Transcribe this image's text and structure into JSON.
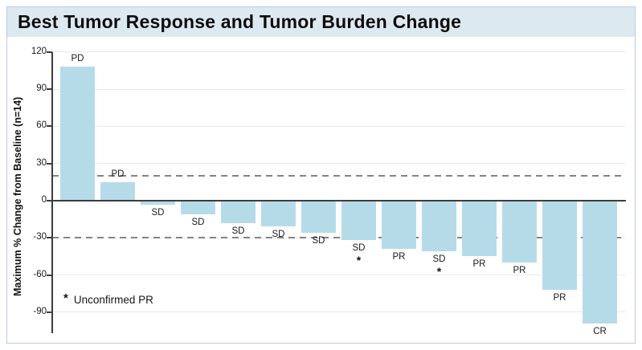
{
  "chart_data": {
    "type": "bar",
    "title": "Best Tumor Response and Tumor Burden Change",
    "ylabel": "Maximum % Change from Baseline (n=14)",
    "xlabel": "",
    "ylim": [
      -105,
      125
    ],
    "yticks": [
      120,
      90,
      60,
      30,
      0,
      -30,
      -60,
      -90
    ],
    "reference_lines": [
      20,
      -30
    ],
    "grid": true,
    "legend": false,
    "annotation_star": "*",
    "annotation_text": "Unconfirmed PR",
    "bar_color": "#b6dbe8",
    "axis_color": "#3d3d3d",
    "reference_line_color": "#838383",
    "header_background": "#dde9f1",
    "bars": [
      {
        "label": "PD",
        "value": 108,
        "asterisk": false
      },
      {
        "label": "PD",
        "value": 15,
        "asterisk": false
      },
      {
        "label": "SD",
        "value": -3,
        "asterisk": false
      },
      {
        "label": "SD",
        "value": -11,
        "asterisk": false
      },
      {
        "label": "SD",
        "value": -18,
        "asterisk": false
      },
      {
        "label": "SD",
        "value": -21,
        "asterisk": false
      },
      {
        "label": "SD",
        "value": -26,
        "asterisk": false
      },
      {
        "label": "SD",
        "value": -32,
        "asterisk": true
      },
      {
        "label": "PR",
        "value": -39,
        "asterisk": false
      },
      {
        "label": "SD",
        "value": -41,
        "asterisk": true
      },
      {
        "label": "PR",
        "value": -45,
        "asterisk": false
      },
      {
        "label": "PR",
        "value": -50,
        "asterisk": false
      },
      {
        "label": "PR",
        "value": -72,
        "asterisk": false
      },
      {
        "label": "CR",
        "value": -99,
        "asterisk": false
      }
    ]
  }
}
